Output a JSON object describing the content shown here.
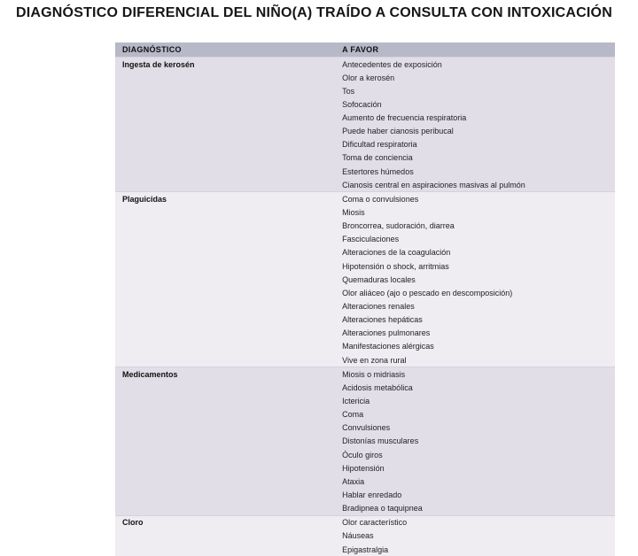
{
  "title": "DIAGNÓSTICO DIFERENCIAL DEL NIÑO(A) TRAÍDO A CONSULTA CON INTOXICACIÓN",
  "colors": {
    "header_bg": "#b7b8c8",
    "band_a": "#e2dee8",
    "band_b": "#efecf2",
    "text": "#222222",
    "title_text": "#161616"
  },
  "table": {
    "headers": [
      "DIAGNÓSTICO",
      "A FAVOR"
    ],
    "column_widths_pct": [
      44,
      56
    ],
    "font_size_pt": 9,
    "groups": [
      {
        "diagnosis": "Ingesta de kerosén",
        "bg_class": "bg-a",
        "findings": [
          "Antecedentes de exposición",
          "Olor a kerosén",
          "Tos",
          "Sofocación",
          "Aumento de frecuencia respiratoria",
          "Puede haber cianosis peribucal",
          "Dificultad respiratoria",
          "Toma de conciencia",
          "Estertores húmedos",
          "Cianosis central en aspiraciones masivas al pulmón"
        ]
      },
      {
        "diagnosis": "Plaguicidas",
        "bg_class": "bg-b",
        "findings": [
          "Coma o convulsiones",
          "Miosis",
          "Broncorrea, sudoración, diarrea",
          "Fasciculaciones",
          "Alteraciones de la coagulación",
          "Hipotensión o shock, arritmias",
          "Quemaduras locales",
          "Olor aliáceo (ajo o pescado en descomposición)",
          "Alteraciones renales",
          "Alteraciones hepáticas",
          "Alteraciones pulmonares",
          "Manifestaciones alérgicas",
          "Vive en zona rural"
        ]
      },
      {
        "diagnosis": "Medicamentos",
        "bg_class": "bg-c",
        "findings": [
          "Miosis o midriasis",
          "Acidosis metabólica",
          "Ictericia",
          "Coma",
          "Convulsiones",
          "Distonías musculares",
          "Óculo giros",
          "Hipotensión",
          "Ataxia",
          "Hablar enredado",
          "Bradipnea o taquipnea"
        ]
      },
      {
        "diagnosis": "Cloro",
        "bg_class": "bg-d",
        "findings": [
          "Olor característico",
          "Náuseas",
          "Epigastralgia"
        ]
      }
    ]
  }
}
